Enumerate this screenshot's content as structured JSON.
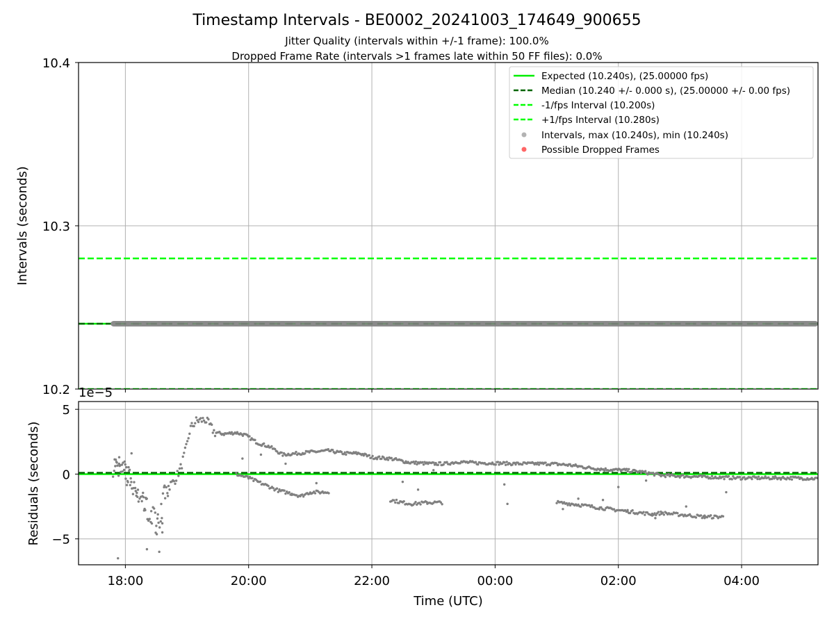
{
  "figure": {
    "title": "Timestamp Intervals - BE0002_20241003_174649_900655",
    "subtitle_1": "Jitter Quality (intervals within +/-1 frame): 100.0%",
    "subtitle_2": "Dropped Frame Rate (intervals >1 frames late within 50 FF files): 0.0%"
  },
  "colors": {
    "expected": "#00ee00",
    "median": "#006400",
    "bounds": "#00ff00",
    "points": "#808080",
    "dropped": "#ff5555",
    "grid": "#b0b0b0"
  },
  "chart_data": [
    {
      "type": "scatter",
      "panel": "top",
      "ylabel": "Intervals (seconds)",
      "ylim": [
        10.2,
        10.4
      ],
      "yticks": [
        "10.2",
        "10.3",
        "10.4"
      ],
      "xlim_hours": [
        17.24,
        29.24
      ],
      "grid": true,
      "legend_position": "upper-right",
      "reference_lines": [
        {
          "name": "Expected (10.240s), (25.00000 fps)",
          "y": 10.24,
          "style": "solid",
          "color_key": "expected"
        },
        {
          "name": "Median (10.240 +/- 0.000 s), (25.00000 +/- 0.00 fps)",
          "y": 10.24,
          "style": "dashed",
          "color_key": "median"
        },
        {
          "name": "-1/fps Interval (10.200s)",
          "y": 10.2,
          "style": "dashed",
          "color_key": "bounds"
        },
        {
          "name": "+1/fps Interval (10.280s)",
          "y": 10.28,
          "style": "dashed",
          "color_key": "bounds"
        }
      ],
      "series": [
        {
          "name": "Intervals, max (10.240s), min (10.240s)",
          "x_start_hours": 17.8,
          "x_end_hours": 29.24,
          "y": 10.24,
          "color_key": "points",
          "marker": "circle"
        },
        {
          "name": "Possible Dropped Frames",
          "points": [],
          "color_key": "dropped",
          "marker": "circle"
        }
      ]
    },
    {
      "type": "scatter",
      "panel": "bottom",
      "ylabel": "Residuals (seconds)",
      "xlabel": "Time (UTC)",
      "offset_label": "1e−5",
      "ylim": [
        -7.0,
        5.6
      ],
      "yticks": [
        "−5",
        "0",
        "5"
      ],
      "xlim_hours": [
        17.24,
        29.24
      ],
      "xticks": [
        {
          "hours": 18,
          "label": "18:00"
        },
        {
          "hours": 20,
          "label": "20:00"
        },
        {
          "hours": 22,
          "label": "22:00"
        },
        {
          "hours": 24,
          "label": "00:00"
        },
        {
          "hours": 26,
          "label": "02:00"
        },
        {
          "hours": 28,
          "label": "04:00"
        }
      ],
      "grid": true,
      "reference_lines": [
        {
          "y": 0.0,
          "style": "solid",
          "color_key": "expected"
        },
        {
          "y": 0.1,
          "style": "dashed",
          "color_key": "median"
        }
      ],
      "series": [
        {
          "name": "Residuals",
          "color_key": "points",
          "main_trend": [
            [
              17.8,
              0.7
            ],
            [
              17.9,
              0.3
            ],
            [
              18.0,
              0.0
            ],
            [
              18.1,
              -0.5
            ],
            [
              18.25,
              -2.0
            ],
            [
              18.4,
              -3.0
            ],
            [
              18.55,
              -3.8
            ],
            [
              18.65,
              -1.2
            ],
            [
              18.8,
              -0.5
            ],
            [
              18.9,
              0.5
            ],
            [
              19.0,
              2.2
            ],
            [
              19.05,
              3.5
            ],
            [
              19.15,
              4.1
            ],
            [
              19.3,
              4.2
            ],
            [
              19.45,
              3.2
            ],
            [
              19.6,
              3.1
            ],
            [
              19.8,
              3.2
            ],
            [
              19.95,
              3.0
            ],
            [
              20.15,
              2.4
            ],
            [
              20.35,
              2.1
            ],
            [
              20.55,
              1.5
            ],
            [
              20.8,
              1.6
            ],
            [
              21.0,
              1.7
            ],
            [
              21.3,
              1.8
            ],
            [
              21.55,
              1.6
            ],
            [
              21.8,
              1.6
            ],
            [
              22.0,
              1.3
            ],
            [
              22.3,
              1.2
            ],
            [
              22.6,
              0.9
            ],
            [
              22.95,
              0.8
            ],
            [
              23.2,
              0.8
            ],
            [
              23.4,
              0.95
            ],
            [
              23.7,
              0.85
            ],
            [
              24.0,
              0.85
            ],
            [
              24.3,
              0.8
            ],
            [
              24.6,
              0.8
            ],
            [
              24.9,
              0.8
            ],
            [
              25.2,
              0.7
            ],
            [
              25.5,
              0.5
            ],
            [
              25.8,
              0.35
            ],
            [
              26.1,
              0.3
            ],
            [
              26.4,
              0.15
            ],
            [
              26.7,
              -0.1
            ],
            [
              27.0,
              -0.15
            ],
            [
              27.3,
              -0.2
            ],
            [
              27.6,
              -0.25
            ],
            [
              27.9,
              -0.3
            ],
            [
              28.2,
              -0.3
            ],
            [
              28.5,
              -0.3
            ],
            [
              28.8,
              -0.3
            ],
            [
              29.24,
              -0.35
            ]
          ],
          "secondary_trend": [
            [
              19.8,
              0.0
            ],
            [
              20.0,
              -0.3
            ],
            [
              20.15,
              -0.6
            ],
            [
              20.3,
              -0.9
            ],
            [
              20.5,
              -1.3
            ],
            [
              20.7,
              -1.5
            ],
            [
              20.85,
              -1.7
            ],
            [
              21.0,
              -1.4
            ],
            [
              21.3,
              -1.4
            ],
            [
              22.3,
              -2.0
            ],
            [
              22.5,
              -2.2
            ],
            [
              22.65,
              -2.3
            ],
            [
              22.9,
              -2.2
            ],
            [
              23.15,
              -2.2
            ],
            [
              25.0,
              -2.2
            ],
            [
              25.25,
              -2.3
            ],
            [
              25.7,
              -2.6
            ],
            [
              25.85,
              -2.7
            ],
            [
              26.55,
              -3.1
            ],
            [
              26.7,
              -3.0
            ],
            [
              27.4,
              -3.3
            ],
            [
              27.7,
              -3.3
            ]
          ],
          "outliers": [
            [
              17.88,
              -6.5
            ],
            [
              18.35,
              -5.8
            ],
            [
              18.55,
              -6.0
            ],
            [
              17.9,
              1.3
            ],
            [
              18.1,
              1.6
            ],
            [
              18.6,
              -4.5
            ],
            [
              19.9,
              1.2
            ],
            [
              20.2,
              1.5
            ],
            [
              20.6,
              0.8
            ],
            [
              21.1,
              -0.7
            ],
            [
              22.5,
              -0.6
            ],
            [
              22.75,
              -1.2
            ],
            [
              23.0,
              0.3
            ],
            [
              24.15,
              -0.8
            ],
            [
              24.2,
              -2.3
            ],
            [
              25.1,
              -2.7
            ],
            [
              25.35,
              -1.9
            ],
            [
              25.75,
              -2.0
            ],
            [
              26.0,
              -1.0
            ],
            [
              26.15,
              -2.9
            ],
            [
              26.45,
              -0.5
            ],
            [
              26.6,
              -3.4
            ],
            [
              27.1,
              -2.5
            ],
            [
              27.75,
              -1.4
            ]
          ]
        }
      ]
    }
  ]
}
